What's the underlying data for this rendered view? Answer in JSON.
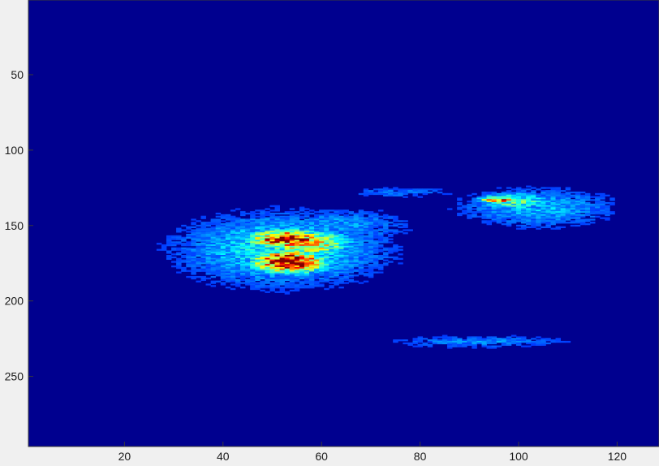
{
  "chart_data": {
    "type": "heatmap",
    "title": "",
    "xlabel": "",
    "ylabel": "",
    "xlim": [
      0.5,
      128.5
    ],
    "ylim": [
      0.5,
      296.5
    ],
    "y_direction": "reversed",
    "colormap": "jet",
    "background_color": "#00008f",
    "grid": false,
    "legend": "none",
    "x_ticks": [
      20,
      40,
      60,
      80,
      100,
      120
    ],
    "x_tick_labels": [
      "20",
      "40",
      "60",
      "80",
      "100",
      "120"
    ],
    "y_ticks": [
      50,
      100,
      150,
      200,
      250
    ],
    "y_tick_labels": [
      "50",
      "100",
      "150",
      "200",
      "250"
    ],
    "blobs": [
      {
        "region": "main-hotspot-upper",
        "x_center": 53,
        "y_center": 159,
        "x_spread": 5,
        "y_spread": 4,
        "peak": 1.0
      },
      {
        "region": "main-hotspot-lower",
        "x_center": 53.5,
        "y_center": 174,
        "x_spread": 5,
        "y_spread": 5,
        "peak": 1.0
      },
      {
        "region": "main-cyan-ridge",
        "x_center": 57,
        "y_center": 162,
        "x_spread": 6,
        "y_spread": 6,
        "peak": 0.62
      },
      {
        "region": "main-halo",
        "x_center": 52,
        "y_center": 166,
        "x_spread": 14,
        "y_spread": 16,
        "peak": 0.3
      },
      {
        "region": "main-faint-tail",
        "x_center": 64,
        "y_center": 150,
        "x_spread": 10,
        "y_spread": 8,
        "peak": 0.18
      },
      {
        "region": "upper-right-streak",
        "x_center": 96,
        "y_center": 133,
        "x_spread": 2.5,
        "y_spread": 1.5,
        "peak": 0.85
      },
      {
        "region": "upper-right-cyan",
        "x_center": 99,
        "y_center": 134,
        "x_spread": 5,
        "y_spread": 4,
        "peak": 0.4
      },
      {
        "region": "upper-right-halo",
        "x_center": 104,
        "y_center": 138,
        "x_spread": 11,
        "y_spread": 9,
        "peak": 0.22
      },
      {
        "region": "upper-middle-streak",
        "x_center": 76,
        "y_center": 128,
        "x_spread": 8,
        "y_spread": 2.5,
        "peak": 0.14
      },
      {
        "region": "lower-faint-band",
        "x_center": 92,
        "y_center": 227,
        "x_spread": 13,
        "y_spread": 3,
        "peak": 0.16
      }
    ]
  }
}
